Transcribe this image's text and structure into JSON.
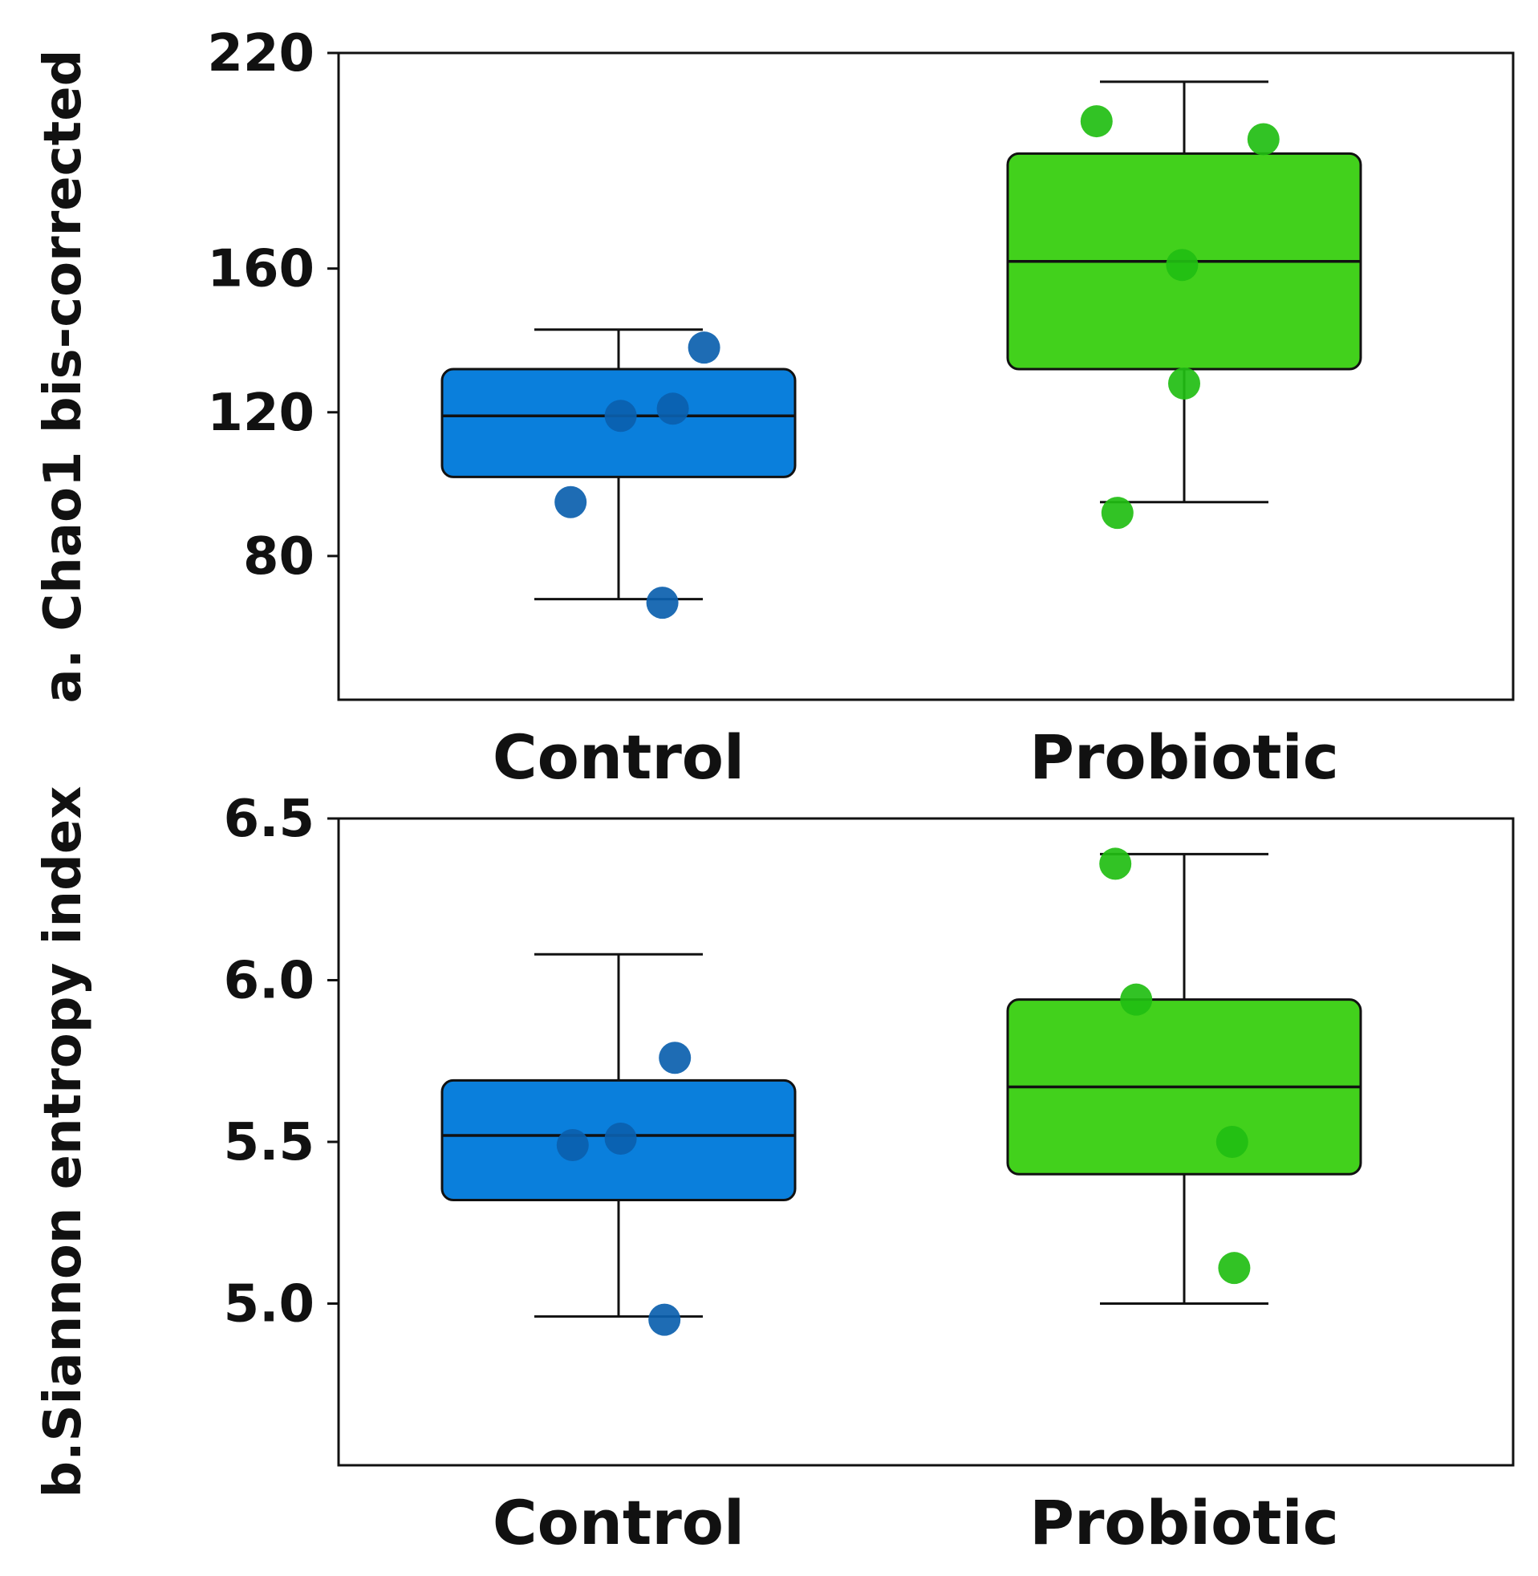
{
  "colors": {
    "control_fill": "#0a7fdc",
    "control_point": "#0b5fae",
    "probiotic_fill": "#42d11c",
    "probiotic_point": "#21be12",
    "line": "#111111"
  },
  "chart_data": [
    {
      "type": "box",
      "ylabel": "a. Chao1 bis-corrected",
      "ylim": [
        40,
        220
      ],
      "yticks": [
        80,
        120,
        160,
        220
      ],
      "categories": [
        "Control",
        "Probiotic"
      ],
      "series": [
        {
          "name": "Control",
          "whisker_low": 68,
          "q1": 102,
          "median": 119,
          "q3": 132,
          "whisker_high": 143,
          "points": [
            {
              "x_offset": -0.23,
              "y": 95
            },
            {
              "x_offset": 0.01,
              "y": 119
            },
            {
              "x_offset": 0.26,
              "y": 121
            },
            {
              "x_offset": 0.41,
              "y": 138
            },
            {
              "x_offset": 0.21,
              "y": 67
            }
          ]
        },
        {
          "name": "Probiotic",
          "whisker_low": 95,
          "q1": 132,
          "median": 162,
          "q3": 192,
          "whisker_high": 212,
          "points": [
            {
              "x_offset": -0.42,
              "y": 201
            },
            {
              "x_offset": -0.32,
              "y": 92
            },
            {
              "x_offset": -0.01,
              "y": 161
            },
            {
              "x_offset": 0.0,
              "y": 128
            },
            {
              "x_offset": 0.38,
              "y": 196
            }
          ]
        }
      ]
    },
    {
      "type": "box",
      "ylabel": "b.Siannon entropy index",
      "ylim": [
        4.5,
        6.5
      ],
      "yticks": [
        5.0,
        5.5,
        6.0,
        6.5
      ],
      "ytick_labels": [
        "5.0",
        "5.5",
        "6.0",
        "6.5"
      ],
      "categories": [
        "Control",
        "Probiotic"
      ],
      "series": [
        {
          "name": "Control",
          "whisker_low": 4.96,
          "q1": 5.32,
          "median": 5.52,
          "q3": 5.69,
          "whisker_high": 6.08,
          "points": [
            {
              "x_offset": -0.22,
              "y": 5.49
            },
            {
              "x_offset": 0.01,
              "y": 5.51
            },
            {
              "x_offset": 0.27,
              "y": 5.76
            },
            {
              "x_offset": 0.22,
              "y": 4.95
            }
          ]
        },
        {
          "name": "Probiotic",
          "whisker_low": 5.0,
          "q1": 5.4,
          "median": 5.67,
          "q3": 5.94,
          "whisker_high": 6.39,
          "points": [
            {
              "x_offset": -0.33,
              "y": 6.36
            },
            {
              "x_offset": -0.23,
              "y": 5.94
            },
            {
              "x_offset": 0.23,
              "y": 5.5
            },
            {
              "x_offset": 0.24,
              "y": 5.11
            }
          ]
        }
      ]
    }
  ]
}
